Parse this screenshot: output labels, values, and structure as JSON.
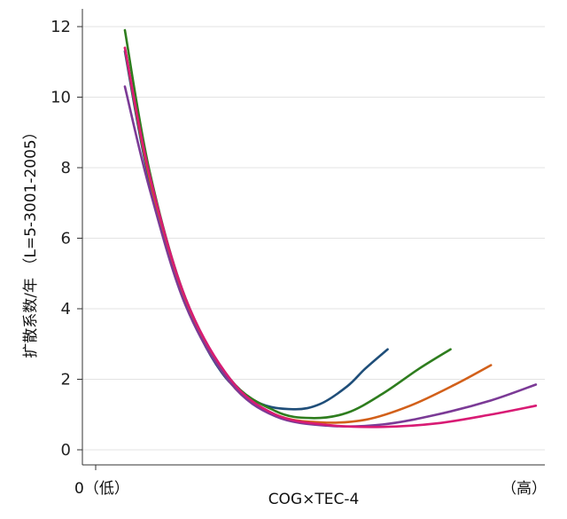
{
  "chart_data": {
    "type": "line",
    "title": "",
    "xlabel": "COG×TEC-4",
    "ylabel": "扩散系数/年 （L=5-3001-2005）",
    "x_tick_left": "0（低）",
    "x_tick_right": "（高）",
    "ylim": [
      0,
      12
    ],
    "yticks": [
      0,
      2,
      4,
      6,
      8,
      10,
      12
    ],
    "xlim": [
      0,
      100
    ],
    "grid": "horizontal",
    "legend": "none",
    "series": [
      {
        "color": "#1f4e79",
        "points": [
          [
            6.5,
            11.3
          ],
          [
            12,
            7.6
          ],
          [
            20,
            4.2
          ],
          [
            28,
            2.2
          ],
          [
            36,
            1.35
          ],
          [
            44,
            1.15
          ],
          [
            50,
            1.3
          ],
          [
            56,
            1.8
          ],
          [
            60,
            2.3
          ],
          [
            65,
            2.85
          ]
        ]
      },
      {
        "color": "#2e7d1e",
        "points": [
          [
            6.5,
            11.9
          ],
          [
            12,
            7.9
          ],
          [
            20,
            4.3
          ],
          [
            30,
            2.0
          ],
          [
            40,
            1.1
          ],
          [
            48,
            0.9
          ],
          [
            56,
            1.05
          ],
          [
            64,
            1.6
          ],
          [
            72,
            2.3
          ],
          [
            79,
            2.85
          ]
        ]
      },
      {
        "color": "#d2601a",
        "points": [
          [
            6.5,
            11.4
          ],
          [
            12,
            7.7
          ],
          [
            20,
            4.2
          ],
          [
            30,
            1.9
          ],
          [
            40,
            1.0
          ],
          [
            50,
            0.78
          ],
          [
            60,
            0.85
          ],
          [
            70,
            1.25
          ],
          [
            80,
            1.85
          ],
          [
            88,
            2.4
          ]
        ]
      },
      {
        "color": "#7b3a96",
        "points": [
          [
            6.5,
            10.3
          ],
          [
            12,
            7.4
          ],
          [
            20,
            4.1
          ],
          [
            30,
            1.9
          ],
          [
            40,
            0.95
          ],
          [
            52,
            0.68
          ],
          [
            64,
            0.72
          ],
          [
            76,
            1.0
          ],
          [
            88,
            1.4
          ],
          [
            98,
            1.85
          ]
        ]
      },
      {
        "color": "#d81b74",
        "points": [
          [
            6.5,
            11.4
          ],
          [
            12,
            7.8
          ],
          [
            20,
            4.3
          ],
          [
            30,
            2.0
          ],
          [
            40,
            1.0
          ],
          [
            52,
            0.7
          ],
          [
            64,
            0.65
          ],
          [
            76,
            0.75
          ],
          [
            88,
            1.0
          ],
          [
            98,
            1.25
          ]
        ]
      }
    ]
  }
}
